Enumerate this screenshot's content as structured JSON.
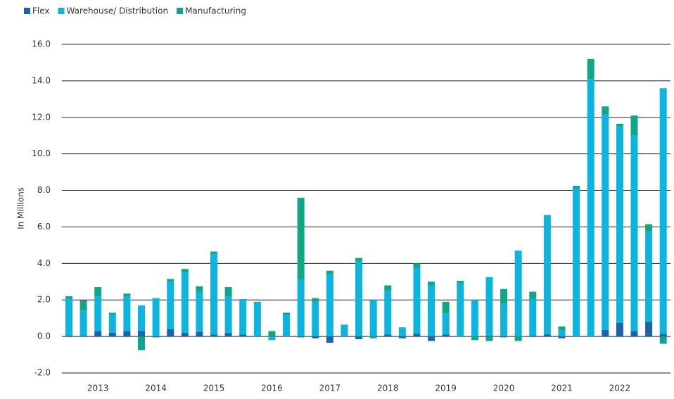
{
  "chart_data": {
    "type": "stacked_bar",
    "ylabel": "In Millions",
    "categories": [
      null,
      null,
      "2013",
      null,
      null,
      null,
      "2014",
      null,
      null,
      null,
      "2015",
      null,
      null,
      null,
      "2016",
      null,
      null,
      null,
      "2017",
      null,
      null,
      null,
      "2018",
      null,
      null,
      null,
      "2019",
      null,
      null,
      null,
      "2020",
      null,
      null,
      null,
      "2021",
      null,
      null,
      null,
      "2022",
      null,
      null,
      null
    ],
    "series": [
      {
        "name": "Flex",
        "color": "#1a64a8",
        "values": [
          0.05,
          0.02,
          0.3,
          0.2,
          0.3,
          0.3,
          -0.05,
          0.4,
          0.2,
          0.25,
          0.1,
          0.2,
          0.1,
          0,
          0,
          0,
          -0.05,
          -0.1,
          -0.35,
          0,
          -0.15,
          0,
          0.1,
          -0.1,
          0.15,
          -0.25,
          0.1,
          0,
          0,
          0.05,
          -0.05,
          0,
          0.05,
          0.1,
          -0.1,
          0,
          0,
          0.35,
          0.75,
          0.3,
          0.8,
          0.15
        ]
      },
      {
        "name": "Warehouse/ Distribution",
        "color": "#0db4dd",
        "values": [
          2.0,
          1.4,
          1.9,
          1.0,
          1.9,
          1.4,
          2.1,
          2.6,
          3.3,
          2.2,
          4.4,
          2.0,
          1.95,
          1.9,
          -0.2,
          1.2,
          3.1,
          1.9,
          3.4,
          0.65,
          4.1,
          2.0,
          2.4,
          0.5,
          3.6,
          2.8,
          1.15,
          2.9,
          2.0,
          3.2,
          1.8,
          4.7,
          2.0,
          6.5,
          0.35,
          8.1,
          14.1,
          11.8,
          10.75,
          10.7,
          4.95,
          13.45
        ]
      },
      {
        "name": "Manufacturing",
        "color": "#13a588",
        "values": [
          0.15,
          0.55,
          0.5,
          0.1,
          0.15,
          -0.75,
          0,
          0.15,
          0.2,
          0.3,
          0.15,
          0.5,
          0,
          0,
          0.3,
          0.1,
          4.5,
          0.2,
          0.2,
          0,
          0.2,
          -0.1,
          0.3,
          0,
          0.25,
          0.2,
          0.65,
          0.15,
          -0.2,
          -0.25,
          0.8,
          -0.25,
          0.4,
          0.05,
          0.2,
          0.15,
          1.1,
          0.45,
          0.15,
          1.1,
          0.4,
          -0.4
        ]
      }
    ],
    "ylim": [
      -2,
      16
    ],
    "yticks": [
      {
        "value": -2,
        "label": "-2.0"
      },
      {
        "value": 0,
        "label": "0.0"
      },
      {
        "value": 2,
        "label": "2.0"
      },
      {
        "value": 4,
        "label": "4.0"
      },
      {
        "value": 6,
        "label": "6.0"
      },
      {
        "value": 8,
        "label": "8.0"
      },
      {
        "value": 10,
        "label": "10.0"
      },
      {
        "value": 12,
        "label": "12.0"
      },
      {
        "value": 14,
        "label": "14.0"
      },
      {
        "value": 16,
        "label": "16.0"
      }
    ],
    "grid": true,
    "legend": "top-left"
  }
}
